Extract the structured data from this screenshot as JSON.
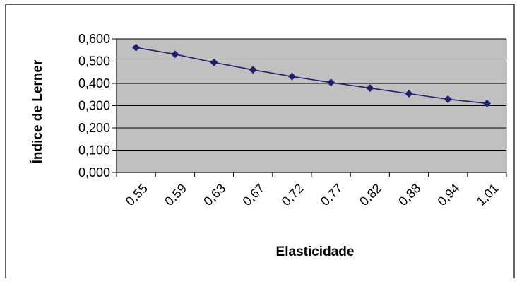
{
  "chart_data": {
    "type": "line",
    "title": "",
    "xlabel": "Elasticidade",
    "ylabel": "Índice de Lerner",
    "categories": [
      "0,55",
      "0,59",
      "0,63",
      "0,67",
      "0,72",
      "0,77",
      "0,82",
      "0,88",
      "0,94",
      "1,01"
    ],
    "series": [
      {
        "name": "",
        "values": [
          0.561,
          0.531,
          0.494,
          0.461,
          0.431,
          0.404,
          0.379,
          0.354,
          0.329,
          0.31
        ]
      }
    ],
    "yticks": [
      "0,000",
      "0,100",
      "0,200",
      "0,300",
      "0,400",
      "0,500",
      "0,600"
    ],
    "ylim": [
      0,
      0.6
    ],
    "grid": true,
    "legend": "none",
    "colors": {
      "plot_background": "#c0c0c0",
      "line": "#1f1f6e",
      "marker": "#1f1f6e",
      "gridline": "#000000"
    }
  }
}
